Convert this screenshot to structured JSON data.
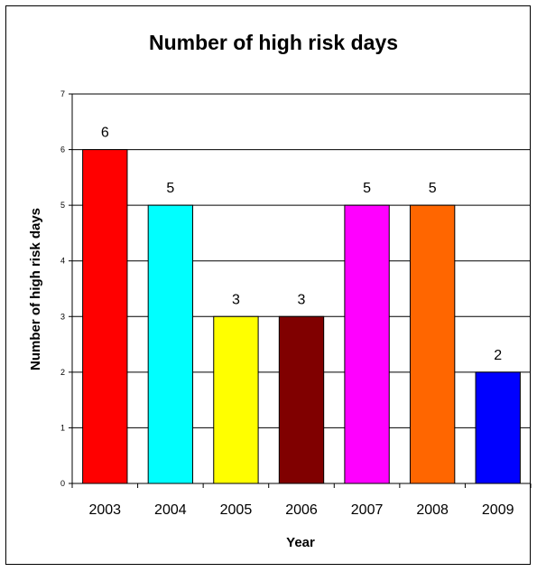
{
  "chart_data": {
    "type": "bar",
    "title": "Number of high risk days",
    "xlabel": "Year",
    "ylabel": "Number of high risk days",
    "categories": [
      "2003",
      "2004",
      "2005",
      "2006",
      "2007",
      "2008",
      "2009"
    ],
    "values": [
      6,
      5,
      3,
      3,
      5,
      5,
      2
    ],
    "bar_colors": [
      "#ff0000",
      "#00ffff",
      "#ffff00",
      "#800000",
      "#ff00ff",
      "#ff6600",
      "#0000ff"
    ],
    "ylim": [
      0,
      7
    ],
    "yticks": [
      0,
      1,
      2,
      3,
      4,
      5,
      6,
      7
    ],
    "grid": true,
    "legend": "none",
    "data_labels": true
  }
}
